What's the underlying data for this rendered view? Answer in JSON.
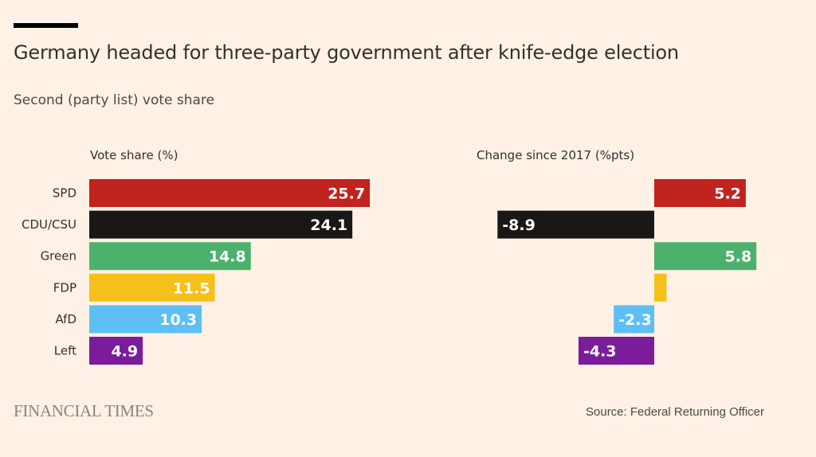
{
  "header": {
    "title": "Germany headed for three-party government after knife-edge election",
    "subtitle": "Second (party list) vote share"
  },
  "footer": {
    "logo_text": "FINANCIAL TIMES",
    "source": "Source: Federal Returning Officer"
  },
  "colors": {
    "background": "#fff1e5",
    "SPD": "#c1231e",
    "CDU/CSU": "#1a1817",
    "Green": "#4cb16c",
    "FDP": "#f5c01a",
    "AfD": "#5ebff5",
    "Left": "#7b1c9a"
  },
  "chart_data": [
    {
      "type": "bar",
      "orientation": "horizontal",
      "title": "Vote share (%)",
      "categories": [
        "SPD",
        "CDU/CSU",
        "Green",
        "FDP",
        "AfD",
        "Left"
      ],
      "values": [
        25.7,
        24.1,
        14.8,
        11.5,
        10.3,
        4.9
      ],
      "labels": [
        "25.7",
        "24.1",
        "14.8",
        "11.5",
        "10.3",
        "4.9"
      ],
      "xlim": [
        0,
        25.7
      ],
      "grid": false,
      "legend": "none"
    },
    {
      "type": "bar",
      "orientation": "horizontal",
      "title": "Change since 2017 (%pts)",
      "categories": [
        "SPD",
        "CDU/CSU",
        "Green",
        "FDP",
        "AfD",
        "Left"
      ],
      "values": [
        5.2,
        -8.9,
        5.8,
        0.7,
        -2.3,
        -4.3
      ],
      "labels": [
        "5.2",
        "-8.9",
        "5.8",
        "",
        "-2.3",
        "-4.3"
      ],
      "xlim": [
        -8.9,
        5.8
      ],
      "grid": false,
      "legend": "none"
    }
  ]
}
